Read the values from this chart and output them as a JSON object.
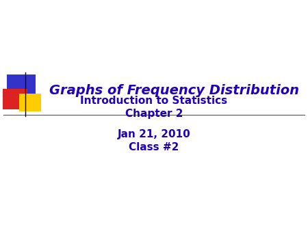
{
  "title": "Graphs of Frequency Distribution",
  "subtitle_line1": "Introduction to Statistics",
  "subtitle_line2": "Chapter 2",
  "subtitle_line3": "Jan 21, 2010",
  "subtitle_line4": "Class #2",
  "title_color": "#2200BB",
  "subtitle_color": "#2200BB",
  "bg_color": "#FFFFFF",
  "title_fontsize": 14,
  "subtitle_fontsize": 11,
  "line_color": "#333333"
}
